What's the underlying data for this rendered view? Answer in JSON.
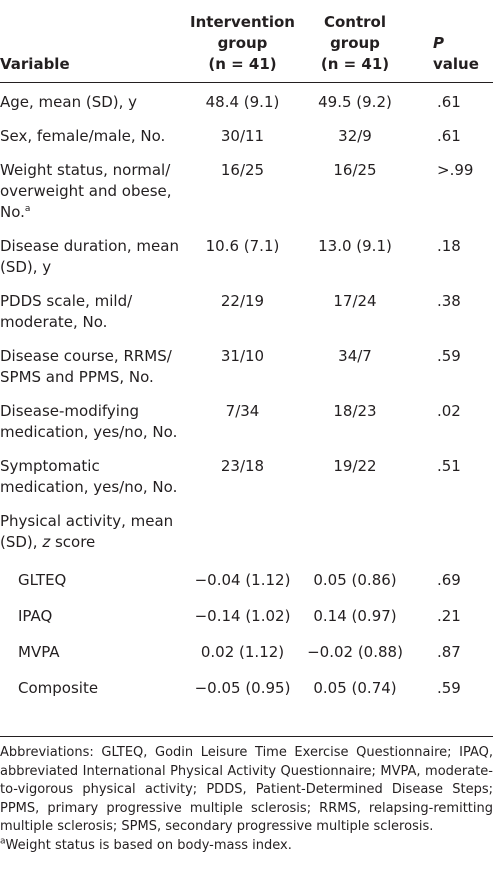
{
  "header": {
    "variable": "Variable",
    "intervention": [
      "Intervention",
      "group",
      "(n = 41)"
    ],
    "control": [
      "Control",
      "group",
      "(n = 41)"
    ],
    "p_italic": "P",
    "p_rest": " value"
  },
  "rows": [
    {
      "lines": [
        "Age, mean (SD), y"
      ],
      "int": "48.4 (9.1)",
      "ctl": "49.5 (9.2)",
      "p": ".61"
    },
    {
      "lines": [
        "Sex, female/male, No."
      ],
      "int": "30/11",
      "ctl": "32/9",
      "p": ".61"
    },
    {
      "lines": [
        "Weight status, normal/",
        "overweight and obese,",
        "No."
      ],
      "sup": "a",
      "int": "16/25",
      "ctl": "16/25",
      "p": ">.99"
    },
    {
      "lines": [
        "Disease duration, mean",
        "(SD), y"
      ],
      "int": "10.6 (7.1)",
      "ctl": "13.0 (9.1)",
      "p": ".18"
    },
    {
      "lines": [
        "PDDS scale, mild/",
        "moderate, No."
      ],
      "int": "22/19",
      "ctl": "17/24",
      "p": ".38"
    },
    {
      "lines": [
        "Disease course, RRMS/",
        "SPMS and PPMS, No."
      ],
      "int": "31/10",
      "ctl": "34/7",
      "p": ".59"
    },
    {
      "lines": [
        "Disease-modifying",
        "medication, yes/no, No."
      ],
      "int": "7/34",
      "ctl": "18/23",
      "p": ".02"
    },
    {
      "lines": [
        "Symptomatic",
        "medication, yes/no, No."
      ],
      "int": "23/18",
      "ctl": "19/22",
      "p": ".51"
    }
  ],
  "physical_activity": {
    "line1": "Physical activity, mean",
    "line2_pre": "(SD), ",
    "line2_italic": "z",
    "line2_post": " score",
    "subrows": [
      {
        "label": "GLTEQ",
        "int": "−0.04 (1.12)",
        "ctl": "0.05 (0.86)",
        "p": ".69"
      },
      {
        "label": "IPAQ",
        "int": "−0.14 (1.02)",
        "ctl": "0.14 (0.97)",
        "p": ".21"
      },
      {
        "label": "MVPA",
        "int": "0.02 (1.12)",
        "ctl": "−0.02 (0.88)",
        "p": ".87"
      },
      {
        "label": "Composite",
        "int": "−0.05 (0.95)",
        "ctl": "0.05 (0.74)",
        "p": ".59"
      }
    ]
  },
  "footnotes": {
    "abbreviations": "Abbreviations: GLTEQ, Godin Leisure Time Exercise Questionnaire; IPAQ, abbreviated International Physical Activity Questionnaire; MVPA, moderate-to-vigorous physical activity; PDDS, Patient-Determined Disease Steps; PPMS, primary progressive multiple sclerosis; RRMS, relapsing-remitting multiple sclerosis; SPMS, secondary progressive multiple sclerosis.",
    "note_marker": "a",
    "note_text": "Weight status is based on body-mass index."
  }
}
